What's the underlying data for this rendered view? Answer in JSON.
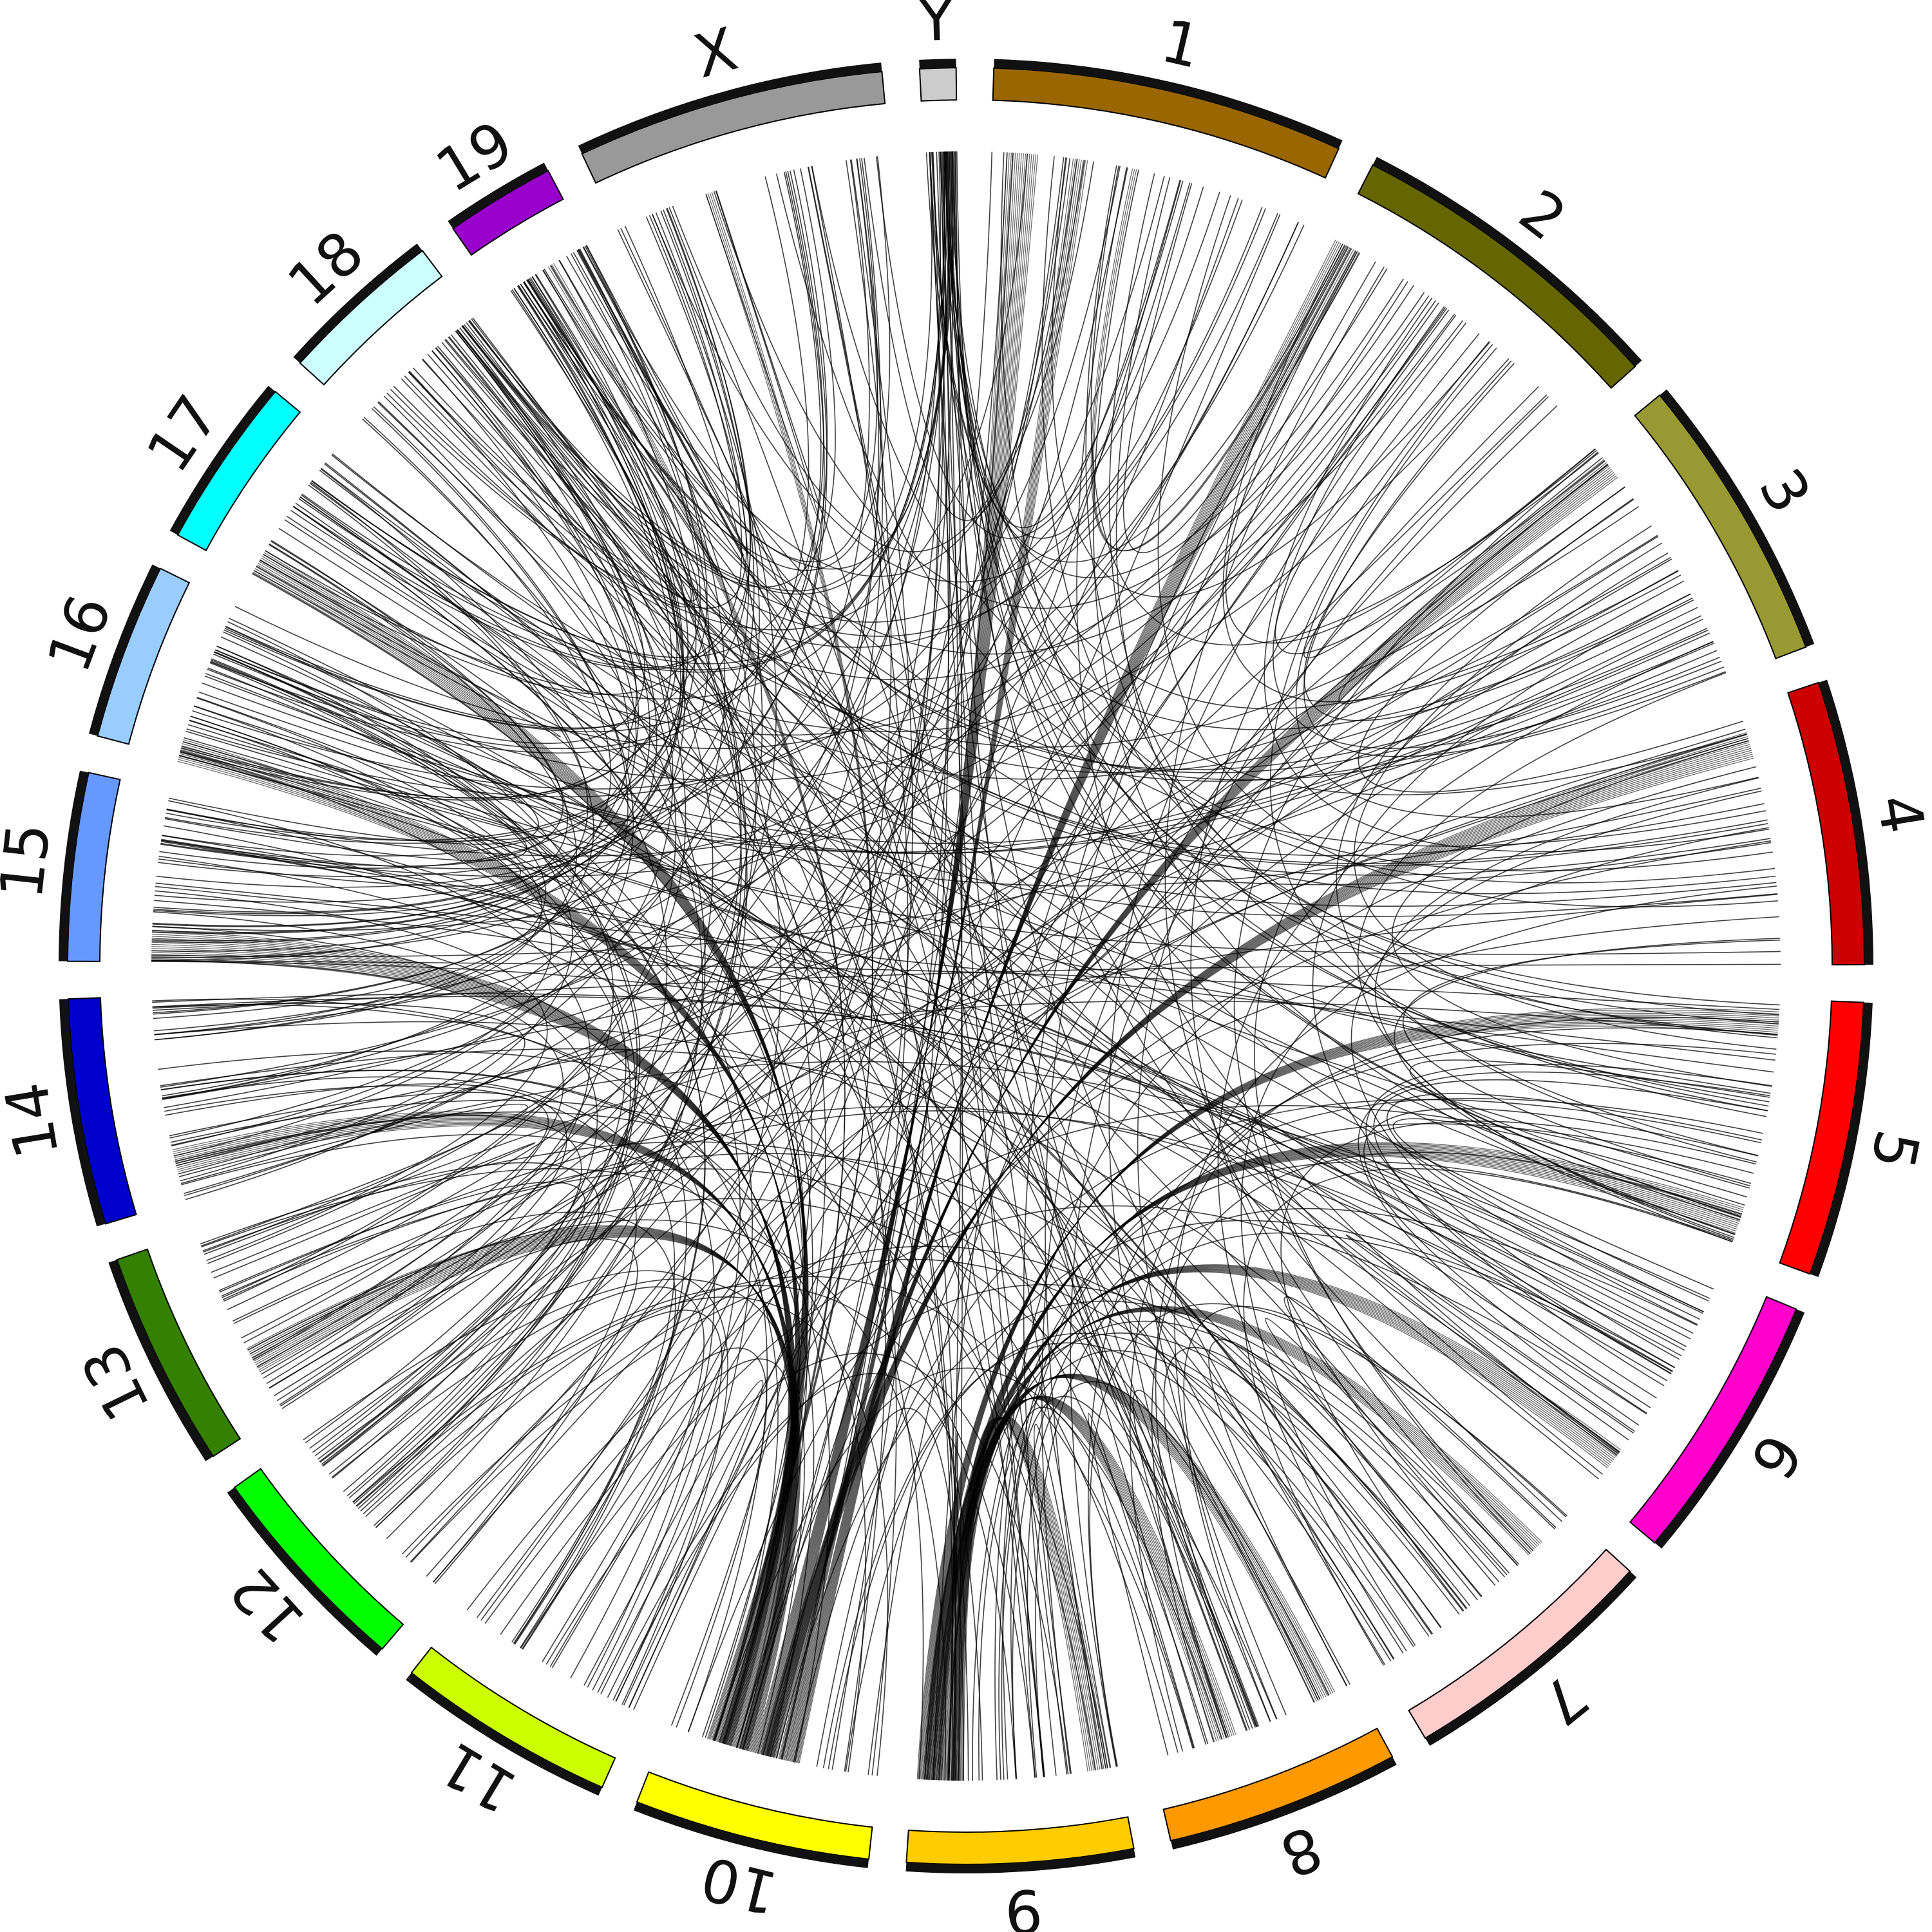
{
  "diagram": {
    "type": "circos",
    "chromosomes": [
      {
        "label": "1",
        "color": "#996600",
        "length": 195
      },
      {
        "label": "2",
        "color": "#666600",
        "length": 182
      },
      {
        "label": "3",
        "color": "#999933",
        "length": 160
      },
      {
        "label": "4",
        "color": "#cc0000",
        "length": 157
      },
      {
        "label": "5",
        "color": "#ff0000",
        "length": 152
      },
      {
        "label": "6",
        "color": "#ff00cc",
        "length": 150
      },
      {
        "label": "7",
        "color": "#ffcccc",
        "length": 145
      },
      {
        "label": "8",
        "color": "#ff9900",
        "length": 130
      },
      {
        "label": "9",
        "color": "#ffcc00",
        "length": 125
      },
      {
        "label": "10",
        "color": "#ffff00",
        "length": 131
      },
      {
        "label": "11",
        "color": "#ccff00",
        "length": 122
      },
      {
        "label": "12",
        "color": "#00ff00",
        "length": 120
      },
      {
        "label": "13",
        "color": "#358000",
        "length": 120
      },
      {
        "label": "14",
        "color": "#0000cc",
        "length": 125
      },
      {
        "label": "15",
        "color": "#6699ff",
        "length": 104
      },
      {
        "label": "16",
        "color": "#99ccff",
        "length": 98
      },
      {
        "label": "17",
        "color": "#00ffff",
        "length": 95
      },
      {
        "label": "18",
        "color": "#ccffff",
        "length": 91
      },
      {
        "label": "19",
        "color": "#9900cc",
        "length": 61
      },
      {
        "label": "X",
        "color": "#999999",
        "length": 171
      },
      {
        "label": "Y",
        "color": "#cccccc",
        "length": 20
      }
    ],
    "bands": [
      {
        "from": "1",
        "from_pos": 0.1,
        "to": "10",
        "to_pos": 0.55,
        "width": 16
      },
      {
        "from": "1",
        "from_pos": 0.28,
        "to": "10",
        "to_pos": 0.45,
        "width": 8
      },
      {
        "from": "2",
        "from_pos": 0.05,
        "to": "10",
        "to_pos": 0.4,
        "width": 14
      },
      {
        "from": "3",
        "from_pos": 0.1,
        "to": "10",
        "to_pos": 0.5,
        "width": 12
      },
      {
        "from": "4",
        "from_pos": 0.15,
        "to": "10",
        "to_pos": 0.52,
        "width": 14
      },
      {
        "from": "5",
        "from_pos": 0.1,
        "to": "9",
        "to_pos": 0.95,
        "width": 12
      },
      {
        "from": "5",
        "from_pos": 0.9,
        "to": "9",
        "to_pos": 0.9,
        "width": 14
      },
      {
        "from": "6",
        "from_pos": 0.85,
        "to": "9",
        "to_pos": 0.92,
        "width": 12
      },
      {
        "from": "7",
        "from_pos": 0.2,
        "to": "9",
        "to_pos": 0.88,
        "width": 10
      },
      {
        "from": "8",
        "from_pos": 0.15,
        "to": "9",
        "to_pos": 0.85,
        "width": 12
      },
      {
        "from": "8",
        "from_pos": 0.65,
        "to": "9",
        "to_pos": 0.8,
        "width": 12
      },
      {
        "from": "9",
        "from_pos": 0.1,
        "to": "9",
        "to_pos": 0.78,
        "width": 12
      },
      {
        "from": "13",
        "from_pos": 0.3,
        "to": "10",
        "to_pos": 0.62,
        "width": 14
      },
      {
        "from": "14",
        "from_pos": 0.2,
        "to": "10",
        "to_pos": 0.64,
        "width": 12
      },
      {
        "from": "15",
        "from_pos": 0.1,
        "to": "10",
        "to_pos": 0.7,
        "width": 16
      },
      {
        "from": "16",
        "from_pos": 0.05,
        "to": "10",
        "to_pos": 0.72,
        "width": 12
      },
      {
        "from": "17",
        "from_pos": 0.1,
        "to": "10",
        "to_pos": 0.75,
        "width": 14
      },
      {
        "from": "19",
        "from_pos": 0.6,
        "to": "10",
        "to_pos": 0.78,
        "width": 4
      },
      {
        "from": "X",
        "from_pos": 0.35,
        "to": "10",
        "to_pos": 0.8,
        "width": 4
      },
      {
        "from": "1",
        "from_pos": 0.45,
        "to": "2",
        "to_pos": 0.05,
        "width": 3
      }
    ],
    "link_count": 420,
    "link_color": "#000000"
  }
}
